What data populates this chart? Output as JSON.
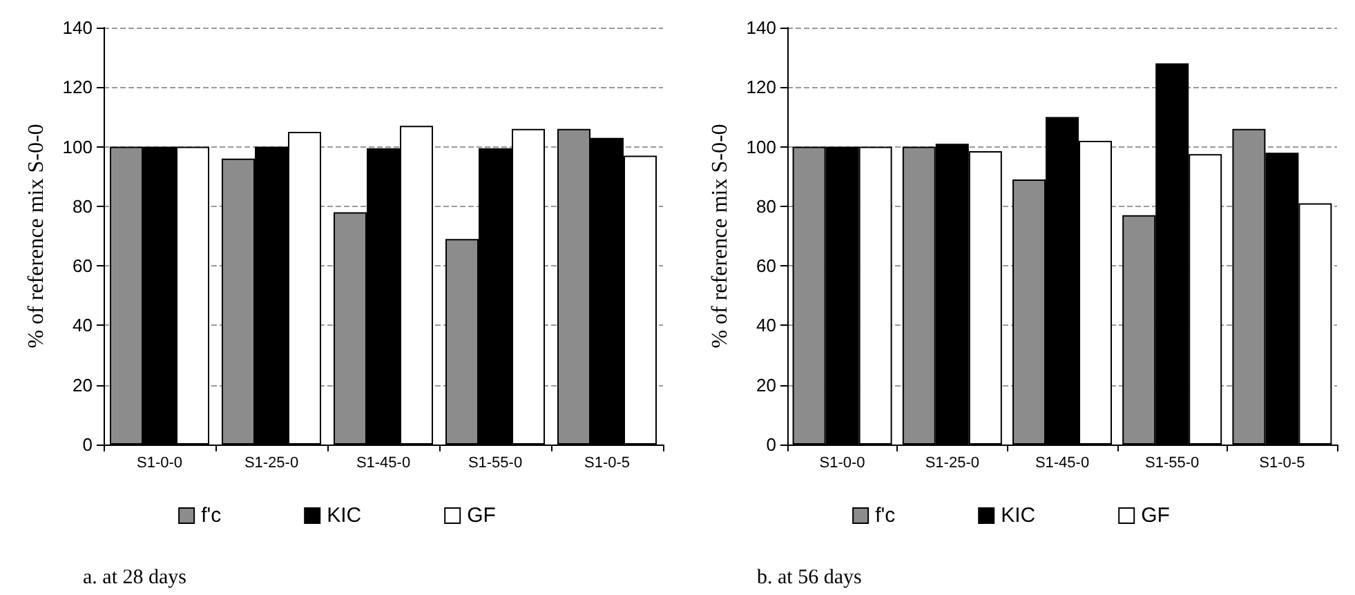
{
  "chart_data": [
    {
      "type": "bar",
      "ylabel": "% of reference mix S-0-0",
      "categories": [
        "S1-0-0",
        "S1-25-0",
        "S1-45-0",
        "S1-55-0",
        "S1-0-5"
      ],
      "series": [
        {
          "name": "f'c",
          "color": "#8c8c8c",
          "values": [
            100,
            96,
            78,
            69,
            106
          ]
        },
        {
          "name": "KIC",
          "color": "#000000",
          "values": [
            100,
            100,
            99.5,
            99.5,
            103
          ]
        },
        {
          "name": "GF",
          "color": "#ffffff",
          "values": [
            100,
            105,
            107,
            106,
            97
          ]
        }
      ],
      "ylim": [
        0,
        140
      ],
      "yticks": [
        0,
        20,
        40,
        60,
        80,
        100,
        120,
        140
      ],
      "grid": "y",
      "legend": "bottom",
      "annotations": [
        "a. at 28 days"
      ]
    },
    {
      "type": "bar",
      "ylabel": "% of reference mix S-0-0",
      "categories": [
        "S1-0-0",
        "S1-25-0",
        "S1-45-0",
        "S1-55-0",
        "S1-0-5"
      ],
      "series": [
        {
          "name": "f'c",
          "color": "#8c8c8c",
          "values": [
            100,
            100,
            89,
            77,
            106
          ]
        },
        {
          "name": "KIC",
          "color": "#000000",
          "values": [
            100,
            101,
            110,
            128,
            98
          ]
        },
        {
          "name": "GF",
          "color": "#ffffff",
          "values": [
            100,
            98.5,
            102,
            97.5,
            81
          ]
        }
      ],
      "ylim": [
        0,
        140
      ],
      "yticks": [
        0,
        20,
        40,
        60,
        80,
        100,
        120,
        140
      ],
      "grid": "y",
      "legend": "bottom",
      "annotations": [
        "b. at 56 days"
      ]
    }
  ]
}
